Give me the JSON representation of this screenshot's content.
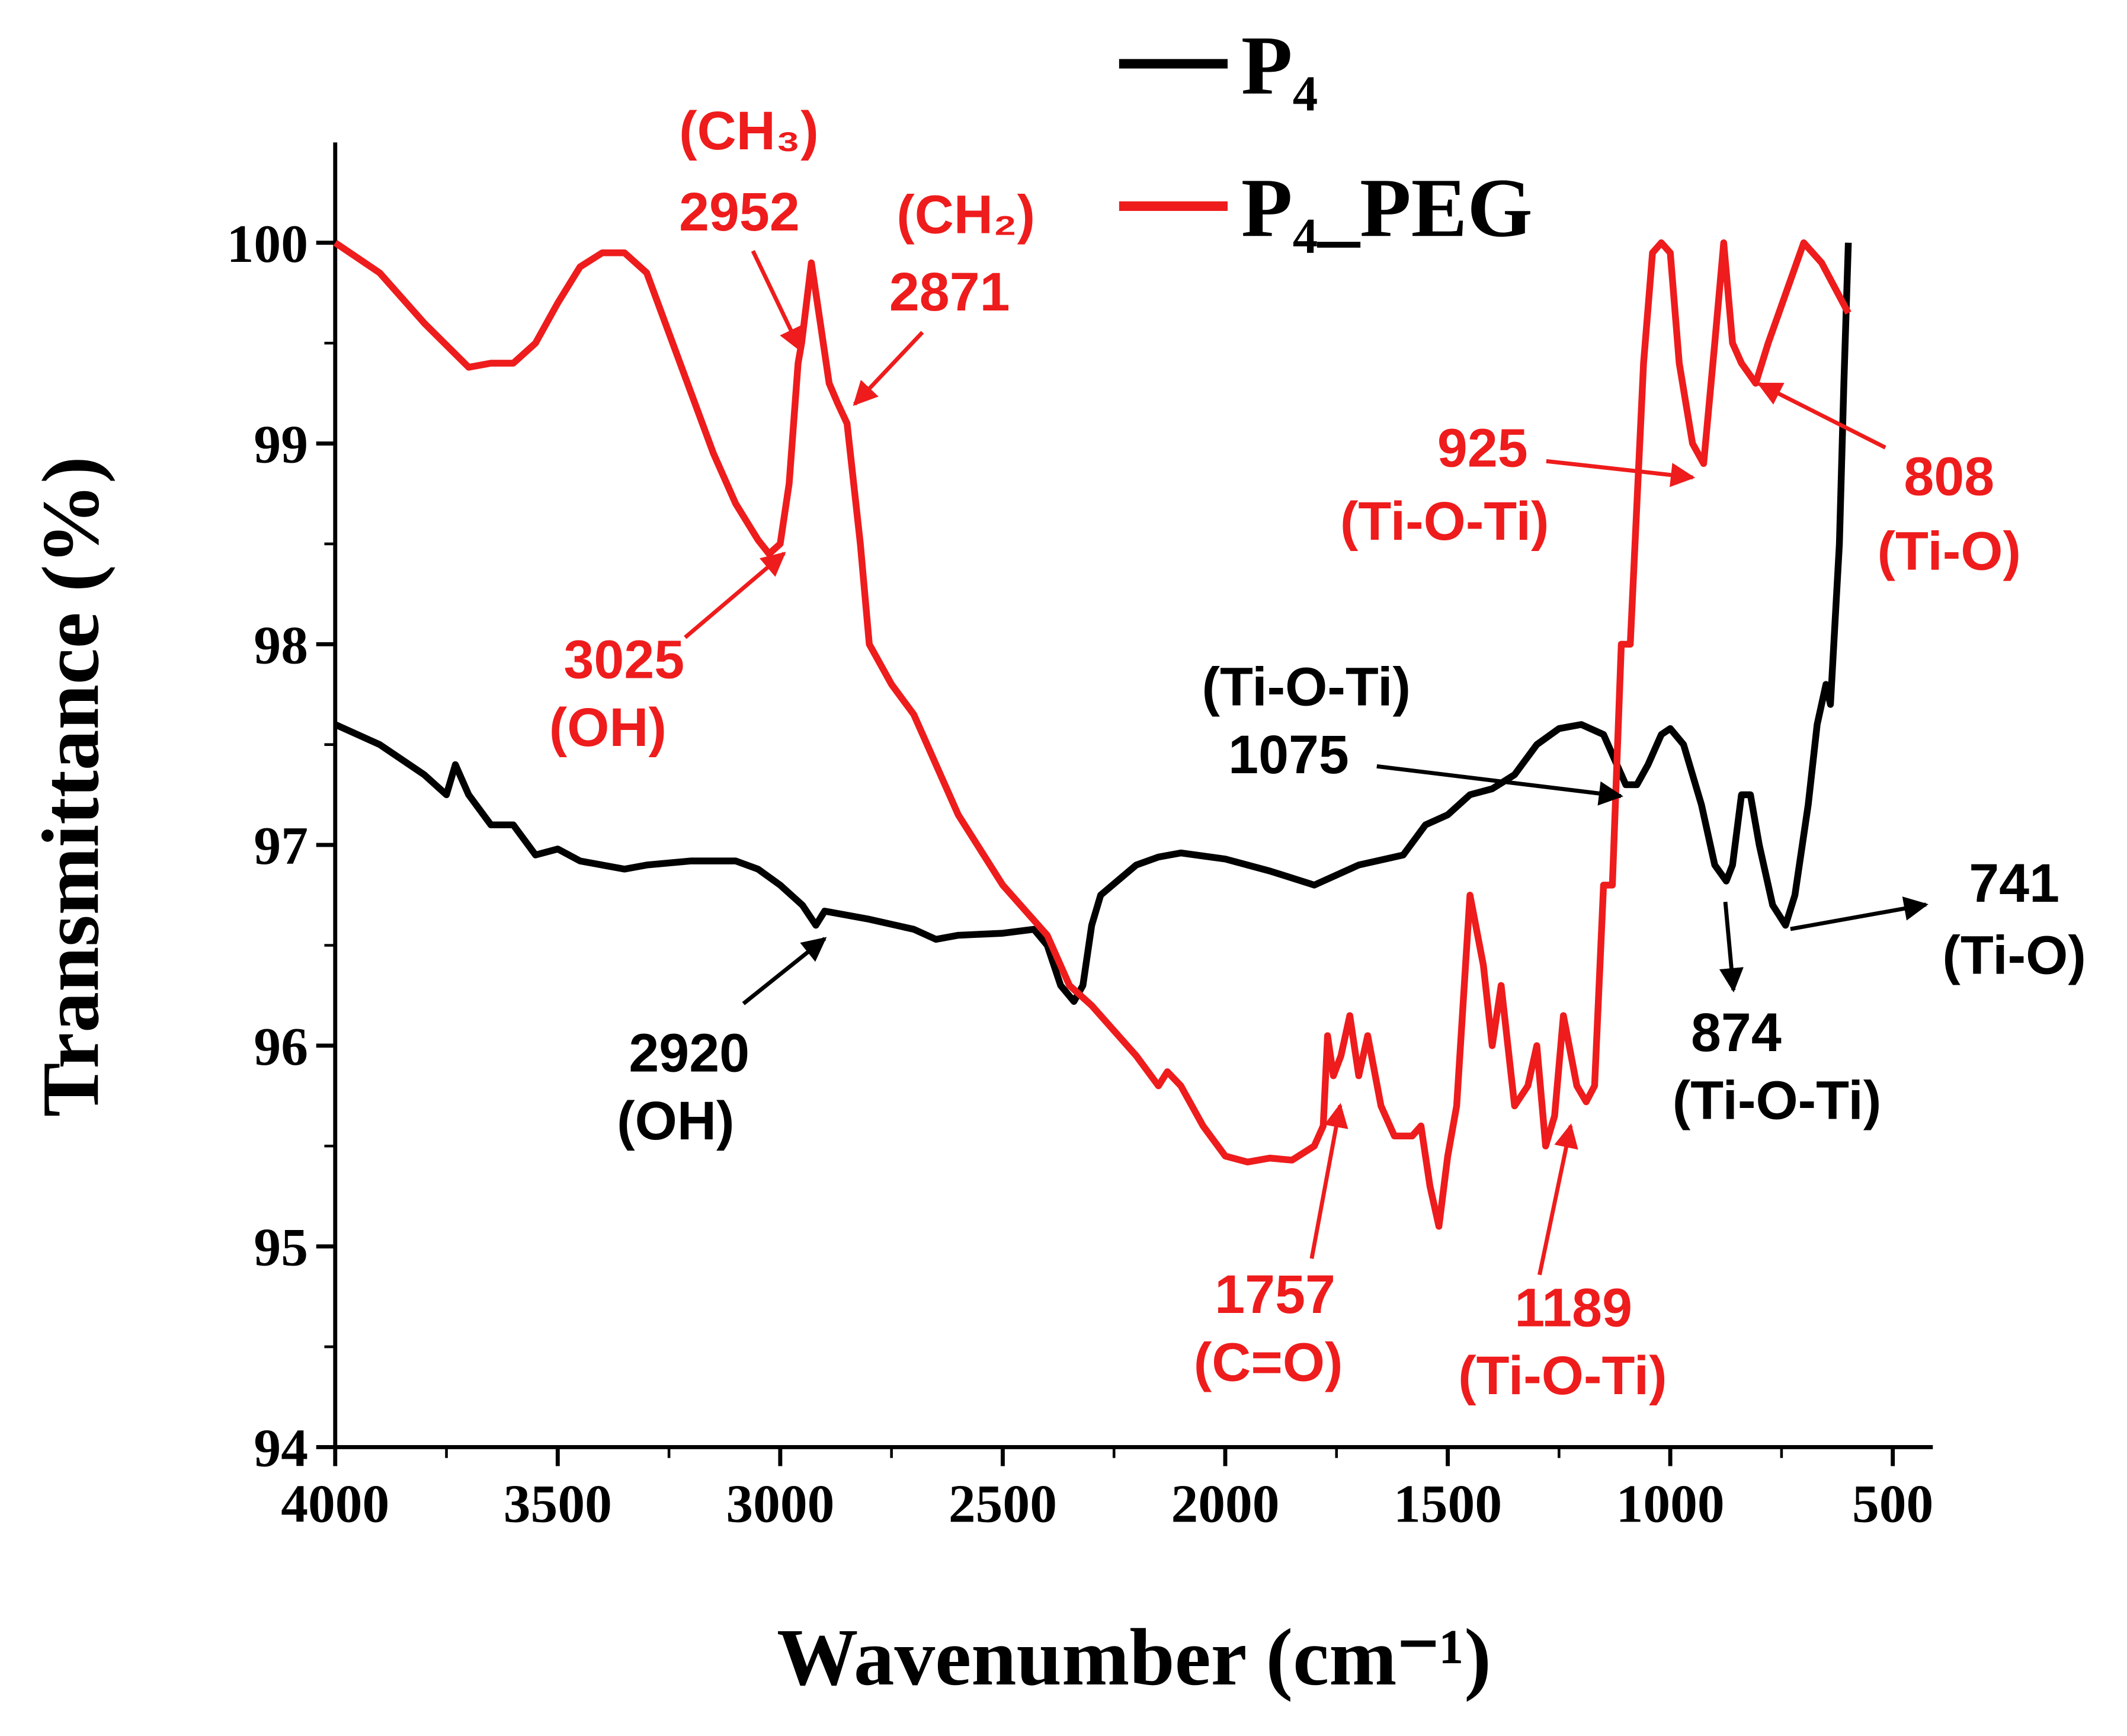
{
  "chart_data": {
    "type": "line",
    "xlabel": "Wavenumber (cm⁻¹)",
    "ylabel": "Transmittance (%)",
    "xlim": [
      4000,
      410
    ],
    "ylim": [
      94,
      100.5
    ],
    "xticks": [
      4000,
      3500,
      3000,
      2500,
      2000,
      1500,
      1000,
      500
    ],
    "yticks": [
      94,
      95,
      96,
      97,
      98,
      99,
      100
    ],
    "legend": "top",
    "series": [
      {
        "name": "P₄",
        "color": "#000000",
        "x": [
          4000,
          3900,
          3800,
          3750,
          3730,
          3700,
          3650,
          3600,
          3550,
          3500,
          3450,
          3400,
          3350,
          3300,
          3200,
          3100,
          3050,
          3000,
          2950,
          2920,
          2900,
          2800,
          2700,
          2650,
          2600,
          2500,
          2430,
          2400,
          2370,
          2340,
          2320,
          2300,
          2280,
          2200,
          2150,
          2100,
          2000,
          1900,
          1800,
          1700,
          1600,
          1550,
          1500,
          1450,
          1400,
          1350,
          1300,
          1250,
          1200,
          1150,
          1100,
          1075,
          1050,
          1020,
          1000,
          970,
          930,
          900,
          874,
          860,
          840,
          820,
          800,
          770,
          741,
          720,
          690,
          670,
          650,
          640,
          620,
          610,
          600
        ],
        "values": [
          97.6,
          97.5,
          97.35,
          97.25,
          97.4,
          97.25,
          97.1,
          97.1,
          96.95,
          96.98,
          96.92,
          96.9,
          96.88,
          96.9,
          96.92,
          96.92,
          96.88,
          96.8,
          96.7,
          96.6,
          96.67,
          96.63,
          96.58,
          96.53,
          96.55,
          96.56,
          96.58,
          96.5,
          96.3,
          96.22,
          96.3,
          96.6,
          96.75,
          96.9,
          96.94,
          96.96,
          96.93,
          96.87,
          96.8,
          96.9,
          96.95,
          97.1,
          97.15,
          97.25,
          97.28,
          97.35,
          97.5,
          97.58,
          97.6,
          97.55,
          97.3,
          97.3,
          97.4,
          97.55,
          97.58,
          97.5,
          97.2,
          96.9,
          96.82,
          96.9,
          97.25,
          97.25,
          97.0,
          96.7,
          96.6,
          96.75,
          97.2,
          97.6,
          97.8,
          97.7,
          98.5,
          99.3,
          100.0
        ]
      },
      {
        "name": "P₄_PEG",
        "color": "#ee1c1c",
        "x": [
          4000,
          3900,
          3800,
          3700,
          3650,
          3600,
          3550,
          3500,
          3450,
          3400,
          3350,
          3300,
          3250,
          3200,
          3150,
          3100,
          3050,
          3025,
          3000,
          2980,
          2960,
          2952,
          2930,
          2910,
          2890,
          2871,
          2850,
          2820,
          2800,
          2750,
          2700,
          2650,
          2600,
          2500,
          2400,
          2350,
          2300,
          2200,
          2150,
          2130,
          2100,
          2050,
          2000,
          1950,
          1900,
          1850,
          1800,
          1780,
          1770,
          1757,
          1740,
          1720,
          1700,
          1680,
          1650,
          1620,
          1580,
          1560,
          1540,
          1520,
          1500,
          1480,
          1450,
          1420,
          1400,
          1380,
          1350,
          1320,
          1300,
          1280,
          1260,
          1240,
          1210,
          1189,
          1170,
          1150,
          1130,
          1110,
          1090,
          1060,
          1040,
          1020,
          1000,
          980,
          950,
          925,
          900,
          880,
          860,
          840,
          808,
          780,
          740,
          700,
          660,
          600
        ],
        "values": [
          100.0,
          99.85,
          99.6,
          99.38,
          99.4,
          99.4,
          99.5,
          99.7,
          99.88,
          99.95,
          99.95,
          99.85,
          99.55,
          99.25,
          98.95,
          98.7,
          98.52,
          98.45,
          98.5,
          98.8,
          99.4,
          99.5,
          99.9,
          99.6,
          99.3,
          99.2,
          99.1,
          98.5,
          98.0,
          97.8,
          97.65,
          97.4,
          97.15,
          96.8,
          96.55,
          96.3,
          96.2,
          95.95,
          95.8,
          95.87,
          95.8,
          95.6,
          95.45,
          95.42,
          95.44,
          95.43,
          95.5,
          95.6,
          96.05,
          95.85,
          95.95,
          96.15,
          95.85,
          96.05,
          95.7,
          95.55,
          95.55,
          95.6,
          95.3,
          95.1,
          95.45,
          95.7,
          96.75,
          96.4,
          96.0,
          96.3,
          95.7,
          95.8,
          96.0,
          95.5,
          95.65,
          96.15,
          95.8,
          95.72,
          95.8,
          96.8,
          96.8,
          98.0,
          98.0,
          99.4,
          99.95,
          100.0,
          99.95,
          99.4,
          99.0,
          98.9,
          99.5,
          100.0,
          99.5,
          99.4,
          99.3,
          99.5,
          99.75,
          100.0,
          99.9,
          99.65
        ]
      }
    ],
    "annotations": [
      {
        "lines": [
          "(CH₃)",
          "2952"
        ]
      },
      {
        "lines": [
          "(CH₂)",
          "2871"
        ]
      },
      {
        "lines": [
          "3025",
          "(OH)"
        ]
      },
      {
        "lines": [
          "925",
          "(Ti-O-Ti)"
        ]
      },
      {
        "lines": [
          "808",
          "(Ti-O)"
        ]
      },
      {
        "lines": [
          "1757",
          "(C=O)"
        ]
      },
      {
        "lines": [
          "1189",
          "(Ti-O-Ti)"
        ]
      },
      {
        "lines": [
          "2920",
          "(OH)"
        ]
      },
      {
        "lines": [
          "(Ti-O-Ti)",
          "1075"
        ]
      },
      {
        "lines": [
          "874",
          "(Ti-O-Ti)"
        ]
      },
      {
        "lines": [
          "741",
          "(Ti-O)"
        ]
      }
    ]
  }
}
